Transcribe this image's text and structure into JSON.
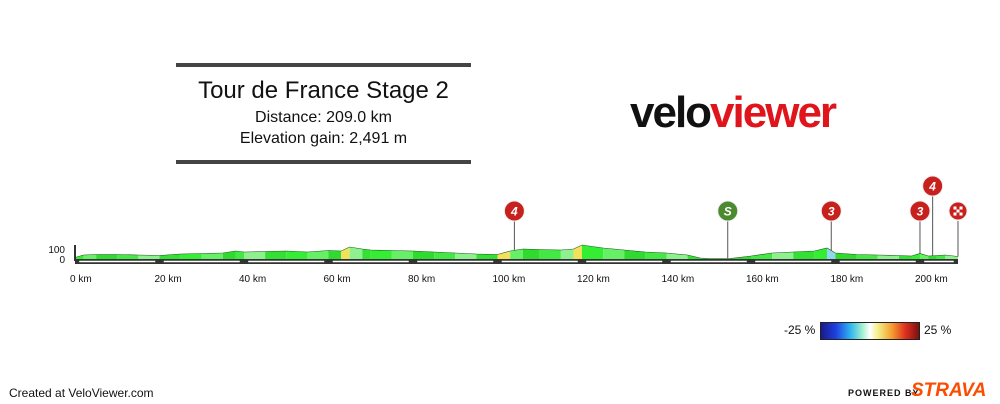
{
  "title_block": {
    "title": "Tour de France Stage 2",
    "distance_line": "Distance: 209.0 km",
    "elevation_line": "Elevation gain: 2,491 m"
  },
  "logo": {
    "part1": "velo",
    "part2": "viewer"
  },
  "footer": {
    "created": "Created at VeloViewer.com",
    "powered": "POWERED BY",
    "strava": "STRAVA"
  },
  "legend": {
    "min_label": "-25 %",
    "max_label": "25 %"
  },
  "colors": {
    "segment_green": "#33ee33",
    "kom_red": "#c8201c",
    "sprint_green": "#4b8a2e",
    "logo_red": "#e0141b",
    "strava_orange": "#fc4c02"
  },
  "chart_data": {
    "type": "area",
    "xlabel": "",
    "ylabel": "",
    "xlim": [
      0,
      209
    ],
    "y_ticks": [
      "100",
      "0"
    ],
    "x_ticks": [
      {
        "value": 0,
        "label": "0 km"
      },
      {
        "value": 20,
        "label": "20 km"
      },
      {
        "value": 40,
        "label": "40 km"
      },
      {
        "value": 60,
        "label": "60 km"
      },
      {
        "value": 80,
        "label": "80 km"
      },
      {
        "value": 100,
        "label": "100 km"
      },
      {
        "value": 120,
        "label": "120 km"
      },
      {
        "value": 140,
        "label": "140 km"
      },
      {
        "value": 160,
        "label": "160 km"
      },
      {
        "value": 180,
        "label": "180 km"
      },
      {
        "value": 200,
        "label": "200 km"
      }
    ],
    "elevation_profile": {
      "x": [
        0,
        2,
        5,
        10,
        15,
        20,
        25,
        30,
        35,
        38,
        40,
        45,
        50,
        55,
        60,
        63,
        65,
        68,
        70,
        75,
        80,
        85,
        90,
        95,
        100,
        103,
        106,
        110,
        115,
        118,
        120,
        125,
        130,
        135,
        140,
        145,
        148,
        150,
        155,
        160,
        165,
        170,
        175,
        178,
        180,
        185,
        190,
        195,
        198,
        200,
        202,
        204,
        206,
        209
      ],
      "y": [
        15,
        40,
        45,
        45,
        40,
        35,
        50,
        55,
        60,
        80,
        70,
        75,
        80,
        70,
        85,
        80,
        120,
        100,
        90,
        85,
        80,
        70,
        60,
        50,
        45,
        80,
        100,
        95,
        90,
        100,
        140,
        110,
        90,
        70,
        60,
        40,
        10,
        5,
        5,
        30,
        60,
        70,
        80,
        110,
        60,
        45,
        40,
        35,
        30,
        55,
        30,
        35,
        40,
        25
      ]
    },
    "markers": [
      {
        "type": "climb",
        "label": "4",
        "x": 104
      },
      {
        "type": "sprint",
        "label": "S",
        "x": 154.5
      },
      {
        "type": "climb",
        "label": "3",
        "x": 179
      },
      {
        "type": "climb",
        "label": "3",
        "x": 200
      },
      {
        "type": "climb",
        "label": "4",
        "x": 203
      },
      {
        "type": "finish",
        "label": "",
        "x": 209
      }
    ]
  }
}
